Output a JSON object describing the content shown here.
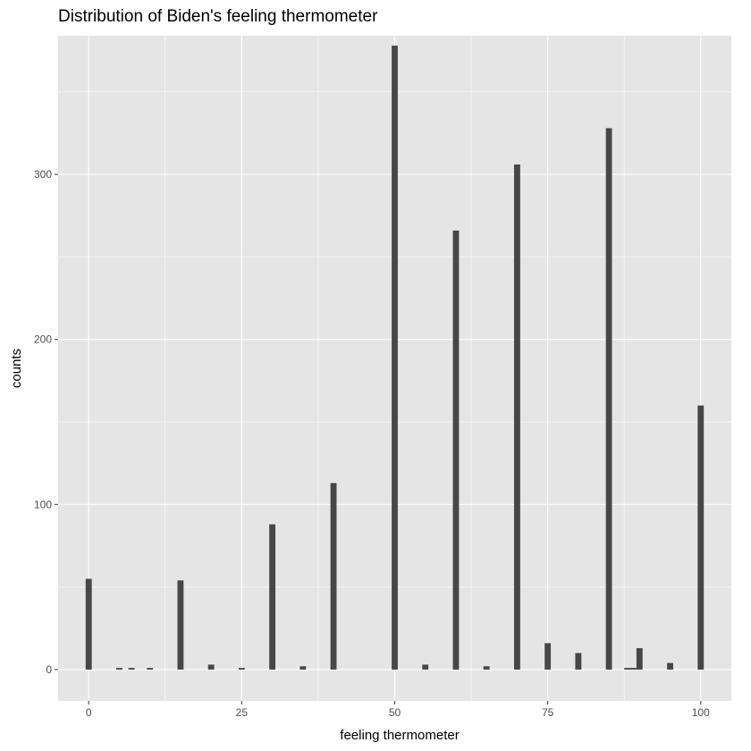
{
  "chart_data": {
    "type": "bar",
    "title": "Distribution of Biden's feeling thermometer",
    "xlabel": "feeling thermometer",
    "ylabel": "counts",
    "xlim": [
      -5,
      105
    ],
    "ylim": [
      -19,
      384
    ],
    "x_ticks": [
      0,
      25,
      50,
      75,
      100
    ],
    "x_tick_labels": [
      "0",
      "25",
      "50",
      "75",
      "100"
    ],
    "y_ticks": [
      0,
      100,
      200,
      300
    ],
    "y_tick_labels": [
      "0",
      "100",
      "200",
      "300"
    ],
    "grid": true,
    "legend": "none",
    "bar_color": "#474747",
    "panel_background": "#e5e5e5",
    "grid_color": "#ffffff",
    "series": [
      {
        "x": [
          0,
          5,
          7,
          10,
          15,
          20,
          25,
          30,
          35,
          40,
          50,
          55,
          60,
          65,
          70,
          75,
          80,
          85,
          88,
          89,
          90,
          95,
          100
        ],
        "values": [
          55,
          1,
          1,
          1,
          54,
          3,
          1,
          88,
          2,
          113,
          378,
          3,
          266,
          2,
          306,
          16,
          10,
          328,
          1,
          1,
          13,
          4,
          160
        ]
      }
    ]
  }
}
